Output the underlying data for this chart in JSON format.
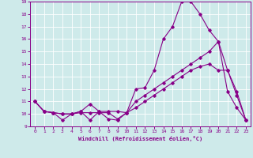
{
  "xlabel": "Windchill (Refroidissement éolien,°C)",
  "xlim": [
    -0.5,
    23.5
  ],
  "ylim": [
    9,
    19
  ],
  "xticks": [
    0,
    1,
    2,
    3,
    4,
    5,
    6,
    7,
    8,
    9,
    10,
    11,
    12,
    13,
    14,
    15,
    16,
    17,
    18,
    19,
    20,
    21,
    22,
    23
  ],
  "yticks": [
    9,
    10,
    11,
    12,
    13,
    14,
    15,
    16,
    17,
    18,
    19
  ],
  "bg_color": "#ceeaea",
  "line_color": "#880088",
  "grid_color": "#ffffff",
  "lines": [
    {
      "x": [
        0,
        1,
        2,
        3,
        4,
        5,
        6,
        7,
        8,
        9,
        10,
        11,
        12,
        13,
        14,
        15,
        16,
        17,
        18,
        19,
        20,
        21,
        22,
        23
      ],
      "y": [
        11,
        10.2,
        10.1,
        9.5,
        10,
        10.2,
        9.5,
        10.2,
        9.6,
        9.5,
        10.1,
        12,
        12.1,
        13.5,
        16,
        17,
        19,
        19,
        18,
        16.7,
        15.8,
        11.8,
        10.5,
        9.5
      ]
    },
    {
      "x": [
        0,
        1,
        2,
        3,
        4,
        5,
        6,
        7,
        8,
        9,
        10,
        11,
        12,
        13,
        14,
        15,
        16,
        17,
        18,
        19,
        20,
        21,
        22,
        23
      ],
      "y": [
        11,
        10.2,
        10.1,
        10,
        10,
        10.2,
        10.8,
        10.2,
        10.2,
        10.2,
        10.1,
        11,
        11.5,
        12,
        12.5,
        13,
        13.5,
        14,
        14.5,
        15,
        15.8,
        13.5,
        11.5,
        9.5
      ]
    },
    {
      "x": [
        0,
        1,
        2,
        3,
        4,
        5,
        6,
        7,
        8,
        9,
        10,
        11,
        12,
        13,
        14,
        15,
        16,
        17,
        18,
        19,
        20,
        21,
        22,
        23
      ],
      "y": [
        11,
        10.2,
        10.1,
        10,
        10,
        10.1,
        10.1,
        10.1,
        10.1,
        9.6,
        10.1,
        10.5,
        11,
        11.5,
        12,
        12.5,
        13,
        13.5,
        13.8,
        14,
        13.5,
        13.5,
        11.8,
        9.5
      ]
    }
  ]
}
